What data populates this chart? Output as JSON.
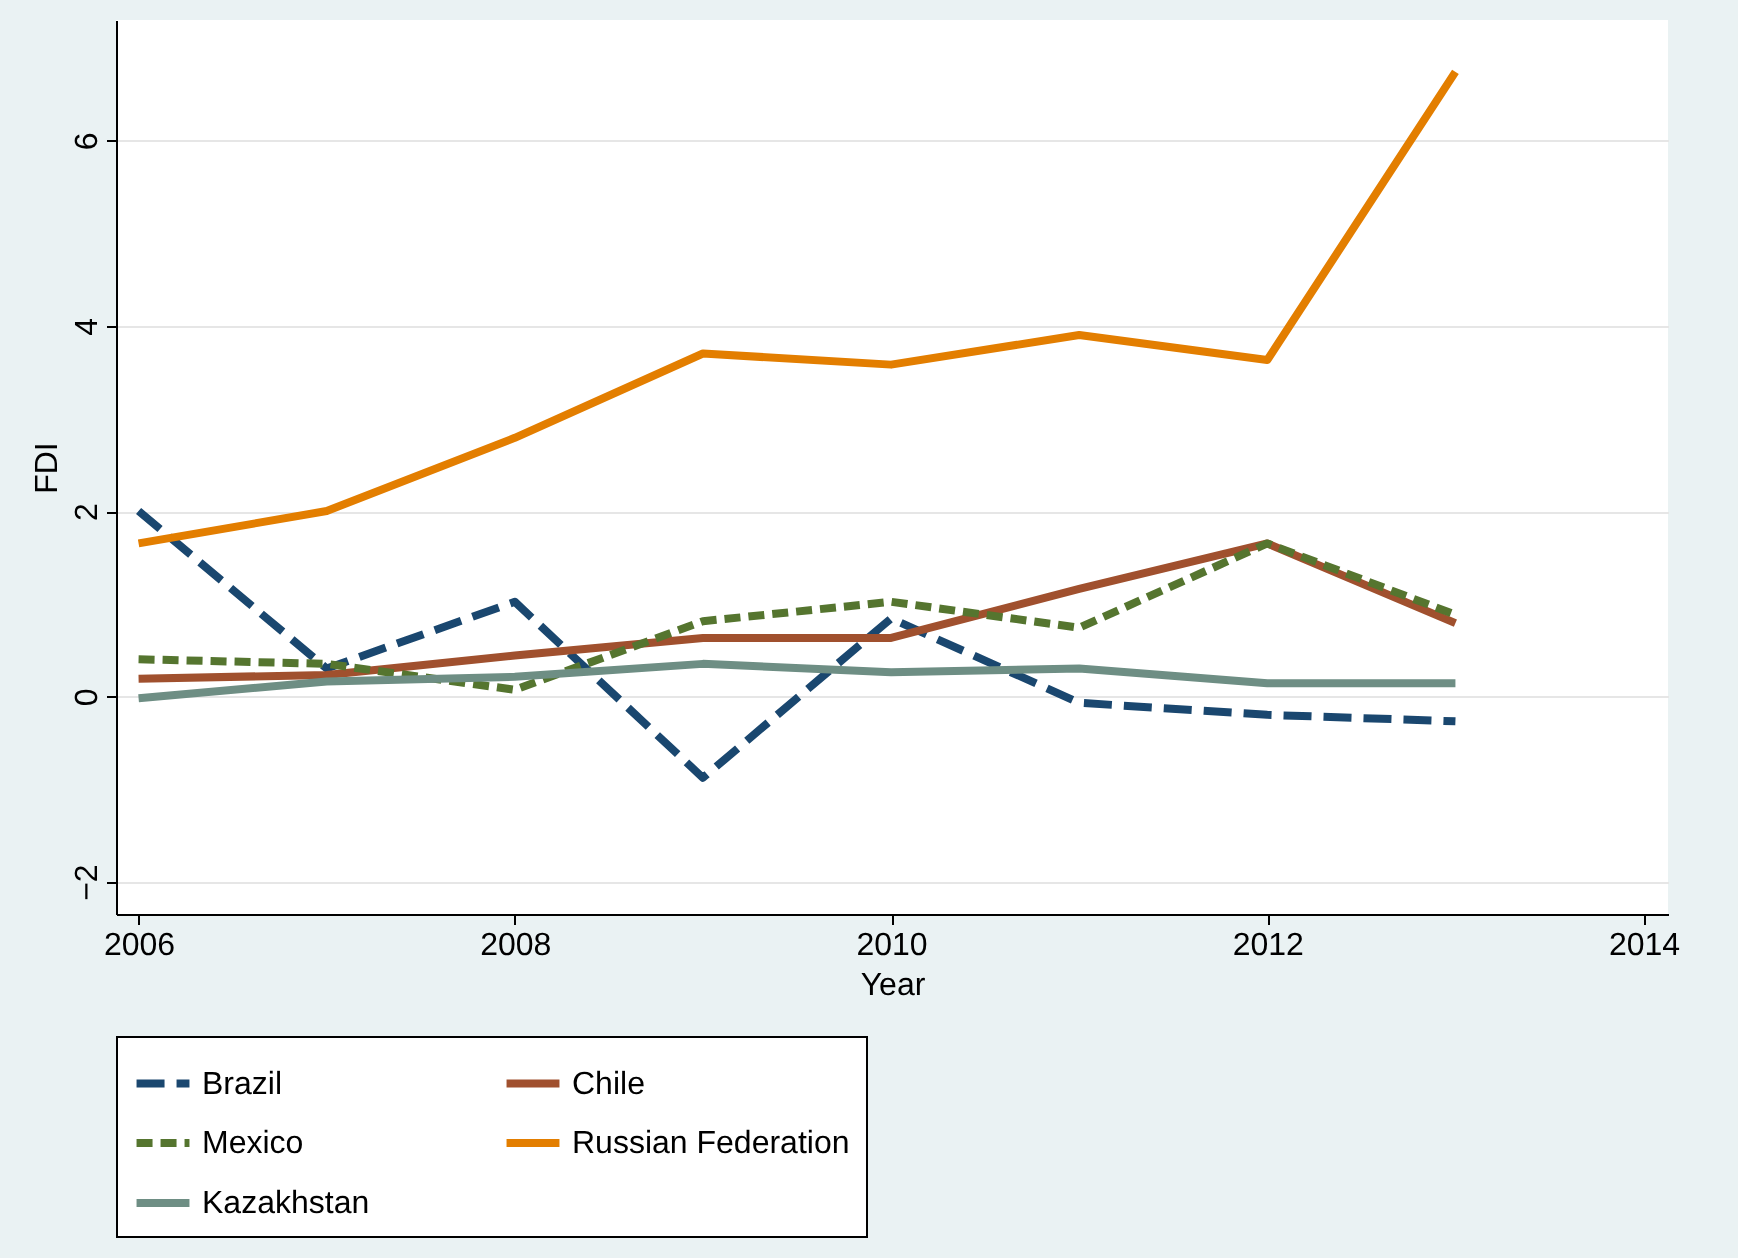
{
  "chart_data": {
    "type": "line",
    "xlabel": "Year",
    "ylabel": "FDI",
    "x": [
      2006,
      2007,
      2008,
      2009,
      2010,
      2011,
      2012,
      2013
    ],
    "series": [
      {
        "name": "Brazil",
        "color": "#1a476f",
        "line_style": "dashed",
        "values": [
          2.0,
          0.3,
          1.02,
          -0.88,
          0.84,
          -0.07,
          -0.2,
          -0.27
        ]
      },
      {
        "name": "Chile",
        "color": "#a0502e",
        "line_style": "solid",
        "values": [
          0.19,
          0.23,
          0.44,
          0.63,
          0.63,
          1.16,
          1.65,
          0.79
        ]
      },
      {
        "name": "Mexico",
        "color": "#55752f",
        "line_style": "dashed",
        "values": [
          0.4,
          0.35,
          0.07,
          0.81,
          1.02,
          0.74,
          1.65,
          0.88
        ]
      },
      {
        "name": "Russian Federation",
        "color": "#e37e00",
        "line_style": "solid",
        "values": [
          1.65,
          2.0,
          2.79,
          3.7,
          3.58,
          3.9,
          3.63,
          6.74
        ]
      },
      {
        "name": "Kazakhstan",
        "color": "#6e8e84",
        "line_style": "solid",
        "values": [
          -0.02,
          0.16,
          0.21,
          0.35,
          0.26,
          0.3,
          0.14,
          0.14
        ]
      }
    ],
    "xlim": [
      2005.88,
      2014.13
    ],
    "xticks": [
      2006,
      2008,
      2010,
      2012,
      2014
    ],
    "ylim": [
      -2.35,
      7.3
    ],
    "yticks": [
      -2,
      0,
      2,
      4,
      6
    ],
    "grid": "y",
    "legend": "bottom",
    "marker": "none"
  }
}
